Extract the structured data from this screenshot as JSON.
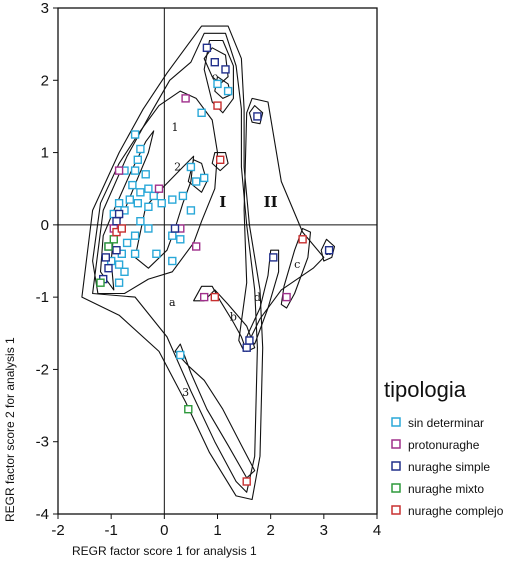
{
  "chart_data": {
    "type": "scatter",
    "xlabel": "REGR factor score  1 for analysis   1",
    "ylabel": "REGR factor score  2 for analysis   1",
    "xlim": [
      -2,
      4
    ],
    "ylim": [
      -4,
      3
    ],
    "x_ticks": [
      "-2",
      "-1",
      "0",
      "1",
      "2",
      "3",
      "4"
    ],
    "y_ticks": [
      "3",
      "2",
      "1",
      "0",
      "-1",
      "-2",
      "-3",
      "-4"
    ],
    "grid": false,
    "reference_lines": {
      "x": 0,
      "y": 0
    },
    "legend": {
      "title": "tipologia",
      "placement": "right",
      "entries": [
        {
          "label": "sin determinar",
          "color": "#2aa8d8"
        },
        {
          "label": "protonuraghe",
          "color": "#a0308c"
        },
        {
          "label": "nuraghe simple",
          "color": "#22308c"
        },
        {
          "label": "nuraghe mixto",
          "color": "#2e9a3c"
        },
        {
          "label": "nuraghe complejo",
          "color": "#c83030"
        }
      ]
    },
    "region_labels": [
      "1",
      "2",
      "3",
      "a",
      "b",
      "c",
      "d",
      "b",
      "c"
    ],
    "group_labels": [
      "I",
      "II"
    ],
    "series": [
      {
        "name": "sin determinar",
        "color": "#2aa8d8",
        "points": [
          [
            -0.55,
            1.25
          ],
          [
            -0.45,
            1.05
          ],
          [
            -0.5,
            0.9
          ],
          [
            -0.75,
            0.75
          ],
          [
            -0.55,
            0.75
          ],
          [
            -0.35,
            0.7
          ],
          [
            -0.6,
            0.55
          ],
          [
            -0.45,
            0.45
          ],
          [
            -0.3,
            0.5
          ],
          [
            -0.65,
            0.35
          ],
          [
            -0.5,
            0.3
          ],
          [
            -0.3,
            0.25
          ],
          [
            -0.85,
            0.3
          ],
          [
            -0.75,
            0.2
          ],
          [
            -0.95,
            0.15
          ],
          [
            -0.2,
            0.4
          ],
          [
            -0.05,
            0.3
          ],
          [
            0.15,
            0.35
          ],
          [
            0.35,
            0.4
          ],
          [
            0.5,
            0.2
          ],
          [
            -0.45,
            0.05
          ],
          [
            -0.3,
            -0.05
          ],
          [
            -0.55,
            -0.15
          ],
          [
            -0.7,
            -0.25
          ],
          [
            -0.8,
            -0.4
          ],
          [
            -0.85,
            -0.55
          ],
          [
            -1.0,
            -0.5
          ],
          [
            -0.75,
            -0.65
          ],
          [
            -0.85,
            -0.8
          ],
          [
            -0.55,
            -0.4
          ],
          [
            -0.15,
            -0.4
          ],
          [
            0.15,
            -0.15
          ],
          [
            0.15,
            -0.5
          ],
          [
            0.3,
            -0.2
          ],
          [
            0.7,
            1.55
          ],
          [
            0.5,
            0.8
          ],
          [
            0.6,
            0.6
          ],
          [
            0.75,
            0.65
          ],
          [
            1.2,
            1.85
          ],
          [
            1.0,
            1.95
          ],
          [
            0.3,
            -1.8
          ]
        ]
      },
      {
        "name": "protonuraghe",
        "color": "#a0308c",
        "points": [
          [
            0.4,
            1.75
          ],
          [
            -0.1,
            0.5
          ],
          [
            -0.85,
            0.75
          ],
          [
            -0.95,
            -0.05
          ],
          [
            0.3,
            -0.05
          ],
          [
            0.6,
            -0.3
          ],
          [
            0.75,
            -1.0
          ],
          [
            2.3,
            -1.0
          ]
        ]
      },
      {
        "name": "nuraghe simple",
        "color": "#22308c",
        "points": [
          [
            0.8,
            2.45
          ],
          [
            0.95,
            2.25
          ],
          [
            1.15,
            2.15
          ],
          [
            1.75,
            1.5
          ],
          [
            -1.05,
            -0.3
          ],
          [
            -0.9,
            0.05
          ],
          [
            -0.9,
            -0.35
          ],
          [
            -1.1,
            -0.45
          ],
          [
            -1.05,
            -0.6
          ],
          [
            -1.15,
            -0.75
          ],
          [
            -0.85,
            0.15
          ],
          [
            0.2,
            -0.05
          ],
          [
            2.05,
            -0.45
          ],
          [
            1.6,
            -1.6
          ],
          [
            1.55,
            -1.7
          ],
          [
            3.1,
            -0.35
          ]
        ]
      },
      {
        "name": "nuraghe mixto",
        "color": "#2e9a3c",
        "points": [
          [
            -1.2,
            -0.8
          ],
          [
            -0.95,
            -0.2
          ],
          [
            -1.05,
            -0.3
          ],
          [
            0.45,
            -2.55
          ]
        ]
      },
      {
        "name": "nuraghe complejo",
        "color": "#c83030",
        "points": [
          [
            1.0,
            1.65
          ],
          [
            1.05,
            0.9
          ],
          [
            -0.9,
            -0.1
          ],
          [
            -0.8,
            -0.05
          ],
          [
            0.95,
            -1.0
          ],
          [
            2.6,
            -0.2
          ],
          [
            1.55,
            -3.55
          ]
        ]
      }
    ]
  }
}
